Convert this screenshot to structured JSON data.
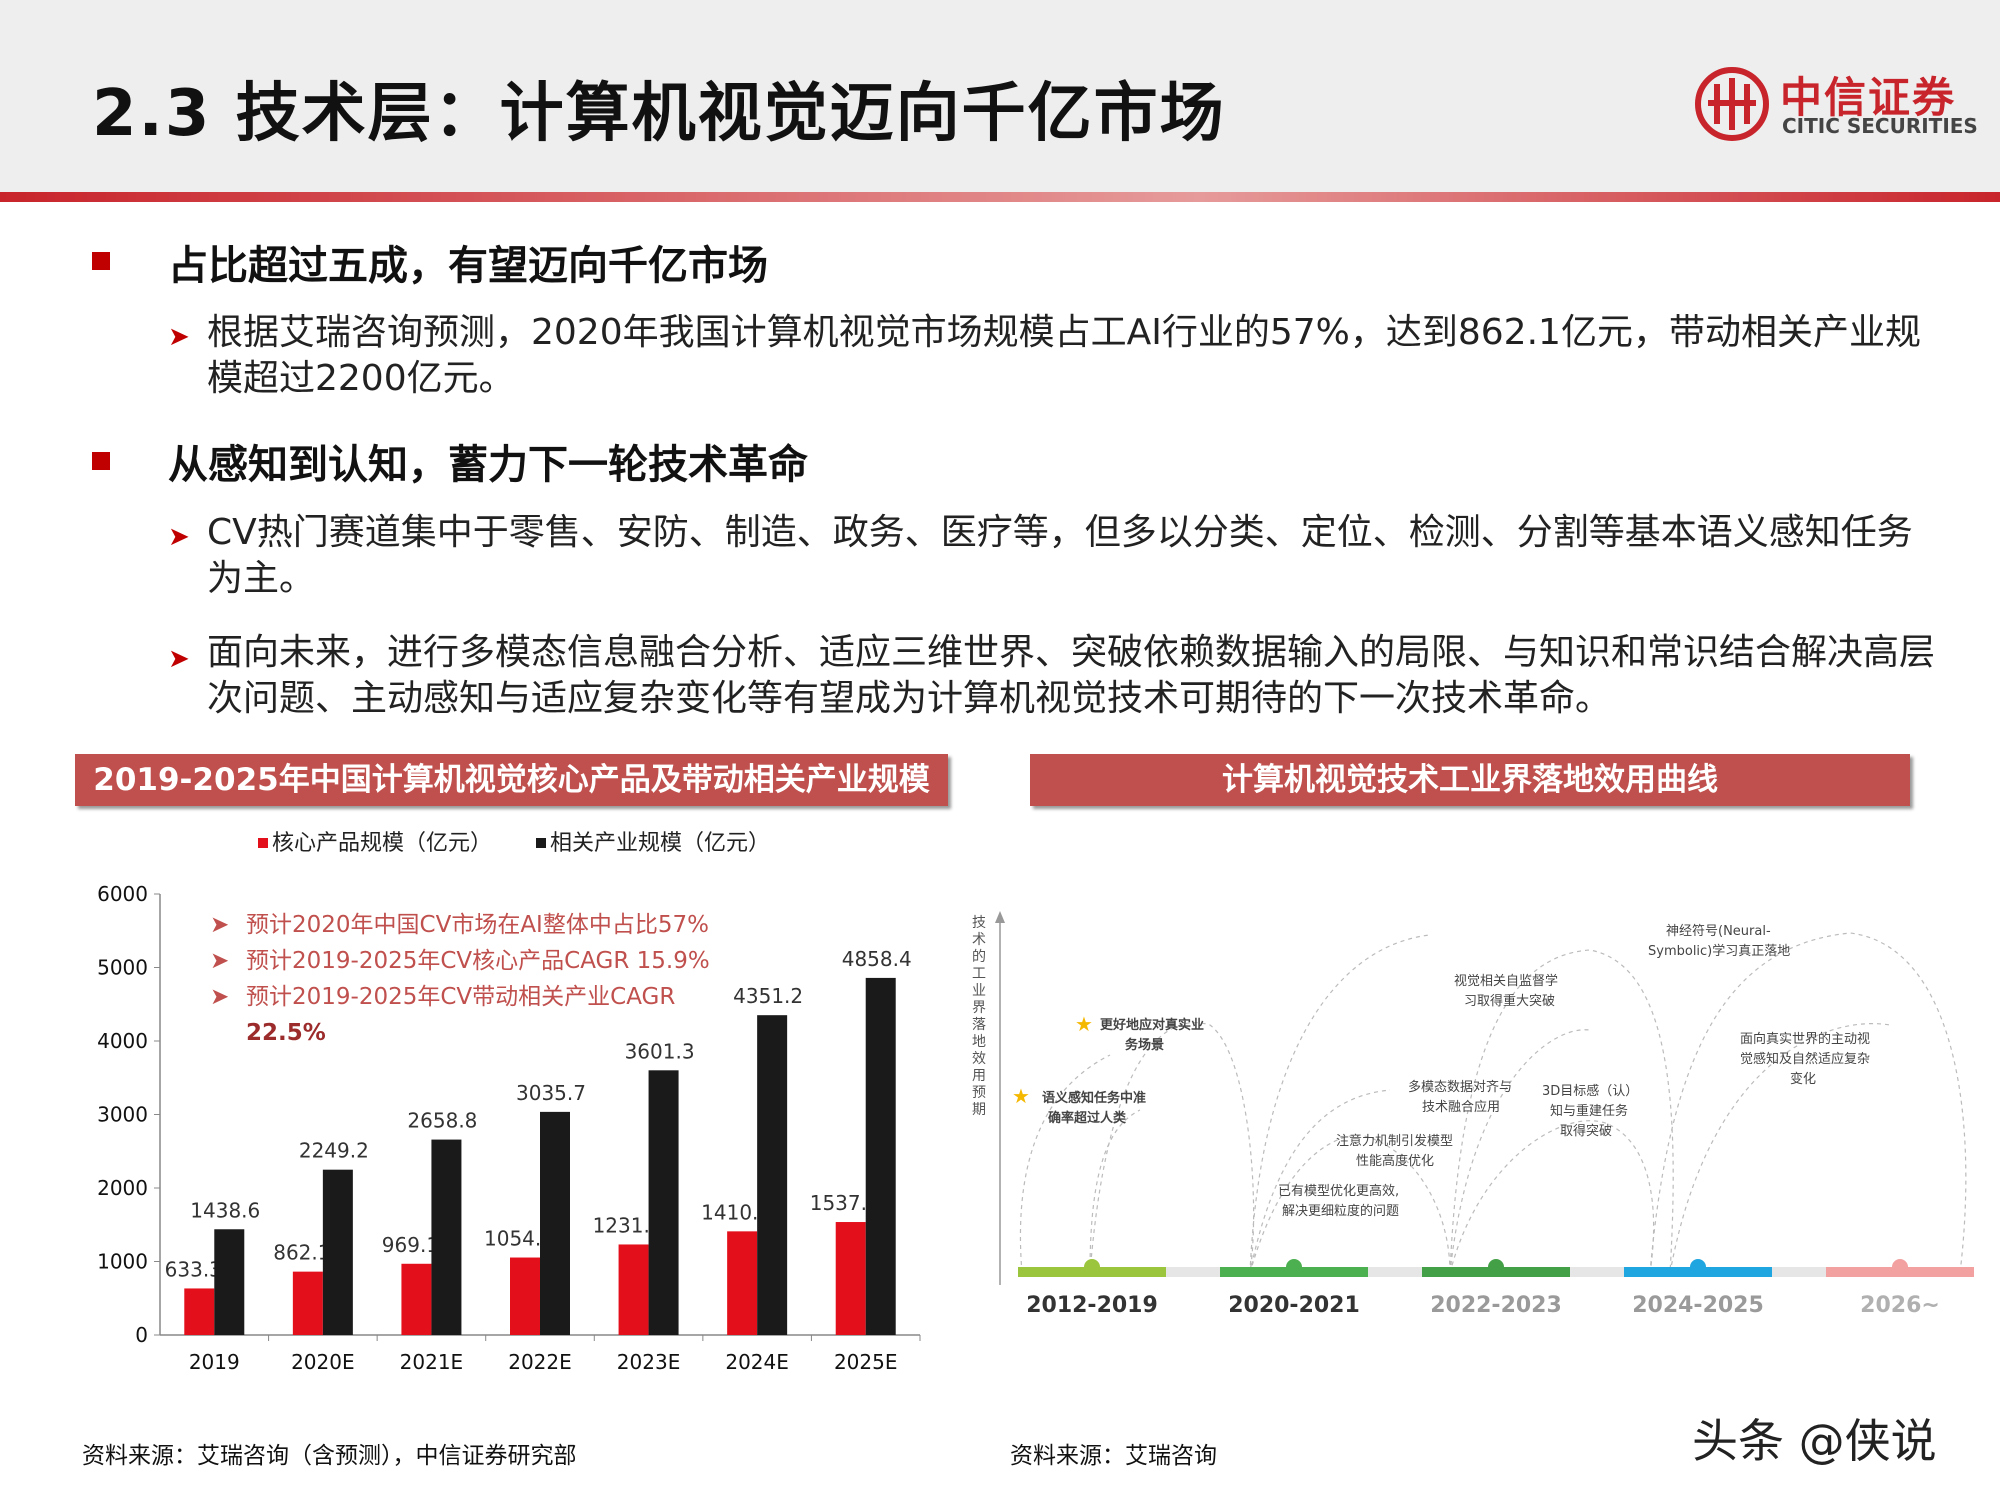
{
  "header": {
    "title": "2.3 技术层：计算机视觉迈向千亿市场",
    "logo_cn": "中信证券",
    "logo_en": "CITIC SECURITIES"
  },
  "sections": [
    {
      "heading": "占比超过五成，有望迈向千亿市场",
      "items": [
        "根据艾瑞咨询预测，2020年我国计算机视觉市场规模占工AI行业的57%，达到862.1亿元，带动相关产业规模超过2200亿元。"
      ]
    },
    {
      "heading": "从感知到认知，蓄力下一轮技术革命",
      "items": [
        "CV热门赛道集中于零售、安防、制造、政务、医疗等，但多以分类、定位、检测、分割等基本语义感知任务为主。",
        "面向未来，进行多模态信息融合分析、适应三维世界、突破依赖数据输入的局限、与知识和常识结合解决高层次问题、主动感知与适应复杂变化等有望成为计算机视觉技术可期待的下一次技术革命。"
      ]
    }
  ],
  "left_panel": {
    "banner": "2019-2025年中国计算机视觉核心产品及带动相关产业规模",
    "notes": [
      "预计2020年中国CV市场在AI整体中占比57%",
      "预计2019-2025年CV核心产品CAGR 15.9%",
      "预计2019-2025年CV带动相关产业CAGR",
      "22.5%"
    ],
    "source": "资料来源：艾瑞咨询（含预测），中信证券研究部"
  },
  "chart_data": {
    "type": "bar",
    "categories": [
      "2019",
      "2020E",
      "2021E",
      "2022E",
      "2023E",
      "2024E",
      "2025E"
    ],
    "series": [
      {
        "name": "核心产品规模（亿元）",
        "color": "#e3101c",
        "values": [
          633.3,
          862.1,
          969.1,
          1054.1,
          1231.8,
          1410.2,
          1537.1
        ]
      },
      {
        "name": "相关产业规模（亿元）",
        "color": "#1a1a1a",
        "values": [
          1438.6,
          2249.2,
          2658.8,
          3035.7,
          3601.3,
          4351.2,
          4858.4
        ]
      }
    ],
    "yticks": [
      "0",
      "1000",
      "2000",
      "3000",
      "4000",
      "5000",
      "6000"
    ],
    "ylim": [
      0,
      6000
    ],
    "legend_position": "top"
  },
  "right_panel": {
    "banner": "计算机视觉技术工业界落地效用曲线",
    "y_axis_label": "技术的工业界落地效用预期",
    "periods": [
      {
        "label": "2012-2019",
        "color": "#9bc53d",
        "text_color": "#333333"
      },
      {
        "label": "2020-2021",
        "color": "#4caf50",
        "text_color": "#333333"
      },
      {
        "label": "2022-2023",
        "color": "#43a047",
        "text_color": "#9a9a9a"
      },
      {
        "label": "2024-2025",
        "color": "#1fa6e0",
        "text_color": "#9a9a9a"
      },
      {
        "label": "2026~",
        "color": "#f2a0a0",
        "text_color": "#b0b0b0"
      }
    ],
    "annotations": {
      "a1": "语义感知任务中准",
      "a1b": "确率超过人类",
      "a2": "更好地应对真实业",
      "a2b": "务场景",
      "a3": "已有模型优化更高效,",
      "a3b": "解决更细粒度的问题",
      "a4": "注意力机制引发模型",
      "a4b": "性能高度优化",
      "a5": "多模态数据对齐与",
      "a5b": "技术融合应用",
      "a6": "3D目标感（认）",
      "a6b": "知与重建任务",
      "a6c": "取得突破",
      "a7": "视觉相关自监督学",
      "a7b": "习取得重大突破",
      "a8": "神经符号(Neural-",
      "a8b": "Symbolic)学习真正落地",
      "a9": "面向真实世界的主动视",
      "a9b": "觉感知及自然适应复杂",
      "a9c": "变化"
    },
    "source": "资料来源：艾瑞咨询"
  },
  "watermark": "头条 @侠说"
}
